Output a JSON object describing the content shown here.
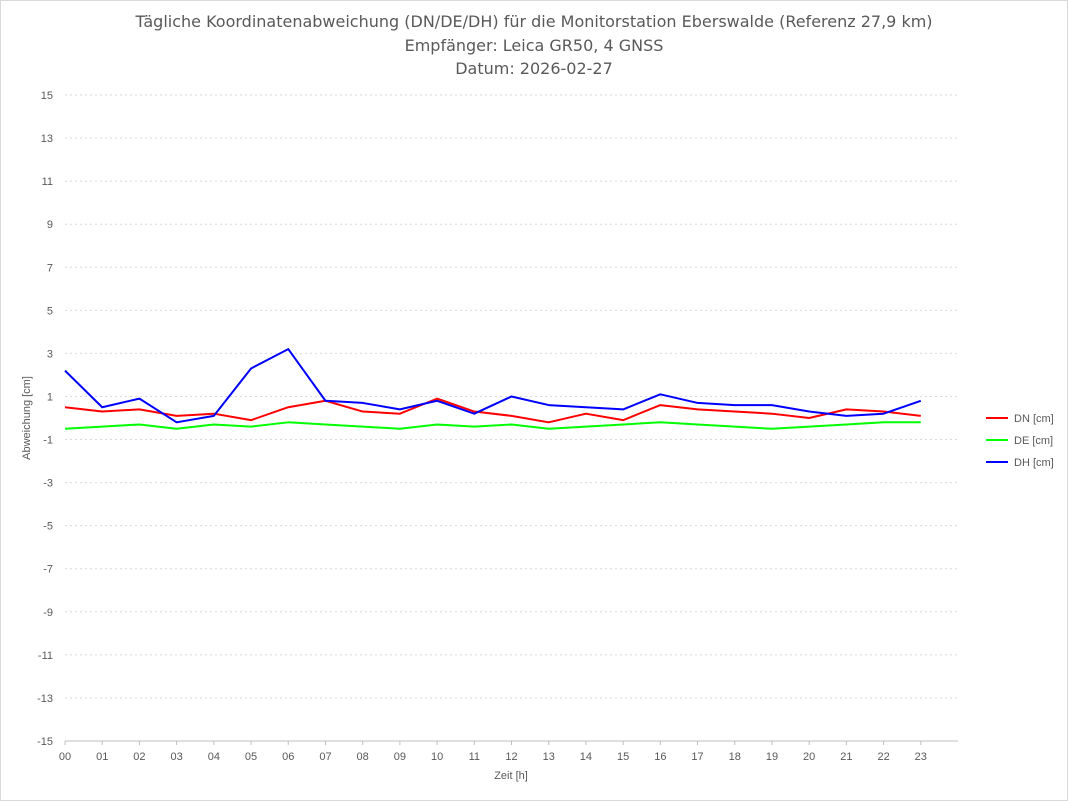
{
  "chart_data": {
    "type": "line",
    "title": "Tägliche Koordinatenabweichung (DN/DE/DH) für die Monitorstation Eberswalde (Referenz 27,9 km)",
    "subtitle": "Empfänger: Leica GR50, 4 GNSS",
    "date_label": "Datum: 2026-02-27",
    "xlabel": "Zeit [h]",
    "ylabel": "Abweichung [cm]",
    "xlim": [
      0,
      24
    ],
    "ylim": [
      -15,
      15
    ],
    "x_ticks": [
      "00",
      "01",
      "02",
      "03",
      "04",
      "05",
      "06",
      "07",
      "08",
      "09",
      "10",
      "11",
      "12",
      "13",
      "14",
      "15",
      "16",
      "17",
      "18",
      "19",
      "20",
      "21",
      "22",
      "23"
    ],
    "y_ticks": [
      "15",
      "13",
      "11",
      "9",
      "7",
      "5",
      "3",
      "1",
      "-1",
      "-3",
      "-5",
      "-7",
      "-9",
      "-11",
      "-13",
      "-15"
    ],
    "y_tick_values": [
      15,
      13,
      11,
      9,
      7,
      5,
      3,
      1,
      -1,
      -3,
      -5,
      -7,
      -9,
      -11,
      -13,
      -15
    ],
    "grid": true,
    "legend_position": "right",
    "x": [
      0.0,
      1.0,
      2.0,
      3.0,
      4.0,
      5.0,
      6.0,
      7.0,
      8.0,
      9.0,
      10.0,
      11.0,
      12.0,
      13.0,
      14.0,
      15.0,
      16.0,
      17.0,
      18.0,
      19.0,
      20.0,
      21.0,
      22.0,
      23.0
    ],
    "series": [
      {
        "name": "DN [cm]",
        "color": "#ff0000",
        "values": [
          0.5,
          0.3,
          0.4,
          0.1,
          0.2,
          -0.1,
          0.5,
          0.8,
          0.3,
          0.2,
          0.9,
          0.3,
          0.1,
          -0.2,
          0.2,
          -0.1,
          0.6,
          0.4,
          0.3,
          0.2,
          0.0,
          0.4,
          0.3,
          0.1
        ]
      },
      {
        "name": "DE [cm]",
        "color": "#00ff00",
        "values": [
          -0.5,
          -0.4,
          -0.3,
          -0.5,
          -0.3,
          -0.4,
          -0.2,
          -0.3,
          -0.4,
          -0.5,
          -0.3,
          -0.4,
          -0.3,
          -0.5,
          -0.4,
          -0.3,
          -0.2,
          -0.3,
          -0.4,
          -0.5,
          -0.4,
          -0.3,
          -0.2,
          -0.2
        ]
      },
      {
        "name": "DH [cm]",
        "color": "#0000ff",
        "values": [
          2.2,
          0.5,
          0.9,
          -0.2,
          0.1,
          2.3,
          3.2,
          0.8,
          0.7,
          0.4,
          0.8,
          0.2,
          1.0,
          0.6,
          0.5,
          0.4,
          1.1,
          0.7,
          0.6,
          0.6,
          0.3,
          0.1,
          0.2,
          0.8
        ]
      }
    ]
  }
}
